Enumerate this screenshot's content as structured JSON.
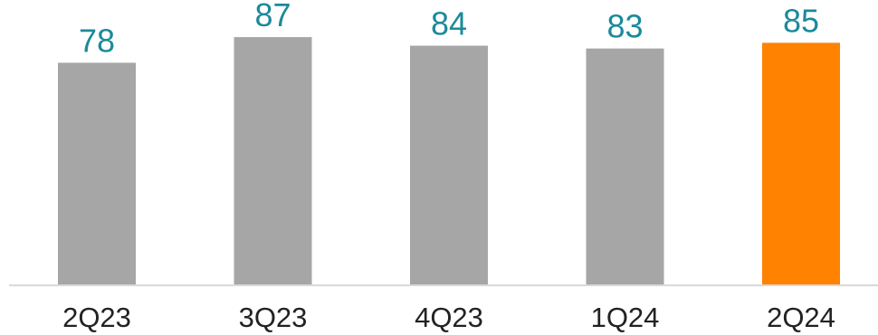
{
  "chart_data": {
    "type": "bar",
    "categories": [
      "2Q23",
      "3Q23",
      "4Q23",
      "1Q24",
      "2Q24"
    ],
    "values": [
      78,
      87,
      84,
      83,
      85
    ],
    "value_labels": [
      "78",
      "87",
      "84",
      "83",
      "85"
    ],
    "highlight_index": 4,
    "title": "",
    "xlabel": "",
    "ylabel": "",
    "ylim": [
      0,
      100
    ],
    "grid": false,
    "legend": "none"
  },
  "colors": {
    "bar_default": "#a6a6a6",
    "bar_highlight": "#ff8200",
    "value_label": "#1b8a9a",
    "axis_line": "#d9d9d9"
  }
}
